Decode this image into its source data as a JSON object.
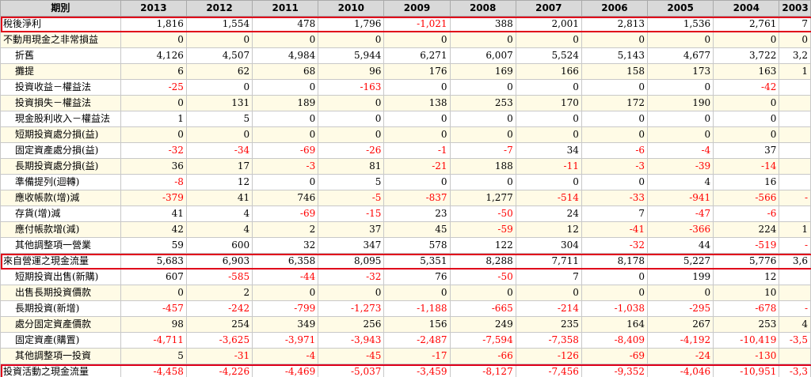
{
  "columns": [
    "期別",
    "2013",
    "2012",
    "2011",
    "2010",
    "2009",
    "2008",
    "2007",
    "2006",
    "2005",
    "2004",
    "2003"
  ],
  "rows": [
    {
      "label": "稅後淨利",
      "indent": false,
      "total": true,
      "values": [
        "1,816",
        "1,554",
        "478",
        "1,796",
        "-1,021",
        "388",
        "2,001",
        "2,813",
        "1,536",
        "2,761",
        "7"
      ]
    },
    {
      "label": "不動用現金之非常損益",
      "indent": false,
      "total": false,
      "values": [
        "0",
        "0",
        "0",
        "0",
        "0",
        "0",
        "0",
        "0",
        "0",
        "0",
        "0"
      ]
    },
    {
      "label": "折舊",
      "indent": true,
      "total": false,
      "values": [
        "4,126",
        "4,507",
        "4,984",
        "5,944",
        "6,271",
        "6,007",
        "5,524",
        "5,143",
        "4,677",
        "3,722",
        "3,2"
      ]
    },
    {
      "label": "攤提",
      "indent": true,
      "total": false,
      "values": [
        "6",
        "62",
        "68",
        "96",
        "176",
        "169",
        "166",
        "158",
        "173",
        "163",
        "1"
      ]
    },
    {
      "label": "投資收益－權益法",
      "indent": true,
      "total": false,
      "values": [
        "-25",
        "0",
        "0",
        "-163",
        "0",
        "0",
        "0",
        "0",
        "0",
        "-42",
        ""
      ]
    },
    {
      "label": "投資損失－權益法",
      "indent": true,
      "total": false,
      "values": [
        "0",
        "131",
        "189",
        "0",
        "138",
        "253",
        "170",
        "172",
        "190",
        "0",
        ""
      ]
    },
    {
      "label": "現金股利收入－權益法",
      "indent": true,
      "total": false,
      "values": [
        "1",
        "5",
        "0",
        "0",
        "0",
        "0",
        "0",
        "0",
        "0",
        "0",
        ""
      ]
    },
    {
      "label": "短期投資處分損(益)",
      "indent": true,
      "total": false,
      "values": [
        "0",
        "0",
        "0",
        "0",
        "0",
        "0",
        "0",
        "0",
        "0",
        "0",
        ""
      ]
    },
    {
      "label": "固定資產處分損(益)",
      "indent": true,
      "total": false,
      "values": [
        "-32",
        "-34",
        "-69",
        "-26",
        "-1",
        "-7",
        "34",
        "-6",
        "-4",
        "37",
        ""
      ]
    },
    {
      "label": "長期投資處分損(益)",
      "indent": true,
      "total": false,
      "values": [
        "36",
        "17",
        "-3",
        "81",
        "-21",
        "188",
        "-11",
        "-3",
        "-39",
        "-14",
        ""
      ]
    },
    {
      "label": "準備提列(迴轉)",
      "indent": true,
      "total": false,
      "values": [
        "-8",
        "12",
        "0",
        "5",
        "0",
        "0",
        "0",
        "0",
        "4",
        "16",
        ""
      ]
    },
    {
      "label": "應收帳款(增)減",
      "indent": true,
      "total": false,
      "values": [
        "-379",
        "41",
        "746",
        "-5",
        "-837",
        "1,277",
        "-514",
        "-33",
        "-941",
        "-566",
        "-"
      ]
    },
    {
      "label": "存貨(增)減",
      "indent": true,
      "total": false,
      "values": [
        "41",
        "4",
        "-69",
        "-15",
        "23",
        "-50",
        "24",
        "7",
        "-47",
        "-6",
        ""
      ]
    },
    {
      "label": "應付帳款增(減)",
      "indent": true,
      "total": false,
      "values": [
        "42",
        "4",
        "2",
        "37",
        "45",
        "-59",
        "12",
        "-41",
        "-366",
        "224",
        "1"
      ]
    },
    {
      "label": "其他調整項一營業",
      "indent": true,
      "total": false,
      "values": [
        "59",
        "600",
        "32",
        "347",
        "578",
        "122",
        "304",
        "-32",
        "44",
        "-519",
        "-"
      ]
    },
    {
      "label": "來自營運之現金流量",
      "indent": false,
      "total": true,
      "values": [
        "5,683",
        "6,903",
        "6,358",
        "8,095",
        "5,351",
        "8,288",
        "7,711",
        "8,178",
        "5,227",
        "5,776",
        "3,6"
      ]
    },
    {
      "label": "短期投資出售(新購)",
      "indent": true,
      "total": false,
      "values": [
        "607",
        "-585",
        "-44",
        "-32",
        "76",
        "-50",
        "7",
        "0",
        "199",
        "12",
        ""
      ]
    },
    {
      "label": "出售長期投資價款",
      "indent": true,
      "total": false,
      "values": [
        "0",
        "2",
        "0",
        "0",
        "0",
        "0",
        "0",
        "0",
        "0",
        "10",
        ""
      ]
    },
    {
      "label": "長期投資(新增)",
      "indent": true,
      "total": false,
      "values": [
        "-457",
        "-242",
        "-799",
        "-1,273",
        "-1,188",
        "-665",
        "-214",
        "-1,038",
        "-295",
        "-678",
        "-"
      ]
    },
    {
      "label": "處分固定資產價款",
      "indent": true,
      "total": false,
      "values": [
        "98",
        "254",
        "349",
        "256",
        "156",
        "249",
        "235",
        "164",
        "267",
        "253",
        "4"
      ]
    },
    {
      "label": "固定資產(購置)",
      "indent": true,
      "total": false,
      "values": [
        "-4,711",
        "-3,625",
        "-3,971",
        "-3,943",
        "-2,487",
        "-7,594",
        "-7,358",
        "-8,409",
        "-4,192",
        "-10,419",
        "-3,5"
      ]
    },
    {
      "label": "其他調整項一投資",
      "indent": true,
      "total": false,
      "values": [
        "5",
        "-31",
        "-4",
        "-45",
        "-17",
        "-66",
        "-126",
        "-69",
        "-24",
        "-130",
        ""
      ]
    },
    {
      "label": "投資活動之現金流量",
      "indent": false,
      "total": true,
      "values": [
        "-4,458",
        "-4,226",
        "-4,469",
        "-5,037",
        "-3,459",
        "-8,127",
        "-7,456",
        "-9,352",
        "-4,046",
        "-10,951",
        "-3,3"
      ]
    }
  ],
  "colors": {
    "negative": "#ff0000",
    "highlight": "#e0001a",
    "header_bg": "#d9d9d9",
    "alt_row_bg": "#fffbe6"
  }
}
